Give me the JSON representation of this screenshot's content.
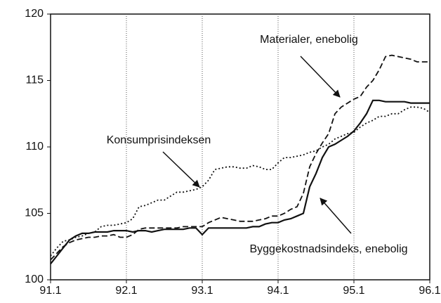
{
  "chart_data": {
    "type": "line",
    "categories": [
      "91.1",
      null,
      null,
      null,
      null,
      null,
      null,
      null,
      null,
      null,
      null,
      null,
      "92.1",
      null,
      null,
      null,
      null,
      null,
      null,
      null,
      null,
      null,
      null,
      null,
      "93.1",
      null,
      null,
      null,
      null,
      null,
      null,
      null,
      null,
      null,
      null,
      null,
      "94.1",
      null,
      null,
      null,
      null,
      null,
      null,
      null,
      null,
      null,
      null,
      null,
      "95.1",
      null,
      null,
      null,
      null,
      null,
      null,
      null,
      null,
      null,
      null,
      null,
      "96.1"
    ],
    "series": [
      {
        "name": "Byggekostnadsindeks, enebolig",
        "color": "#111111",
        "style": "solid",
        "values": [
          101.2,
          101.8,
          102.4,
          103.0,
          103.3,
          103.5,
          103.5,
          103.6,
          103.6,
          103.6,
          103.7,
          103.7,
          103.7,
          103.6,
          103.7,
          103.7,
          103.6,
          103.7,
          103.8,
          103.8,
          103.8,
          103.8,
          103.9,
          103.9,
          103.4,
          103.9,
          103.9,
          103.9,
          103.9,
          103.9,
          103.9,
          103.9,
          104.0,
          104.0,
          104.2,
          104.3,
          104.3,
          104.5,
          104.6,
          104.8,
          105.0,
          107.0,
          108.0,
          109.2,
          110.0,
          110.2,
          110.5,
          110.8,
          111.2,
          111.8,
          112.5,
          113.5,
          113.5,
          113.4,
          113.4,
          113.4,
          113.4,
          113.3,
          113.3,
          113.3,
          113.3
        ]
      },
      {
        "name": "Materialer, enebolig",
        "color": "#111111",
        "style": "dashed",
        "values": [
          101.5,
          102.0,
          102.5,
          102.8,
          103.0,
          103.1,
          103.2,
          103.2,
          103.3,
          103.3,
          103.4,
          103.2,
          103.2,
          103.4,
          103.8,
          103.9,
          103.9,
          103.9,
          103.9,
          103.9,
          103.9,
          104.0,
          104.0,
          104.0,
          104.0,
          104.3,
          104.5,
          104.7,
          104.6,
          104.5,
          104.4,
          104.4,
          104.4,
          104.5,
          104.6,
          104.8,
          104.8,
          105.0,
          105.3,
          105.5,
          106.5,
          108.5,
          109.5,
          110.3,
          111.0,
          112.5,
          113.0,
          113.3,
          113.6,
          113.8,
          114.5,
          115.0,
          115.8,
          116.8,
          116.9,
          116.8,
          116.7,
          116.6,
          116.4,
          116.4,
          116.4
        ]
      },
      {
        "name": "Konsumprisindeksen",
        "color": "#111111",
        "style": "dotted",
        "values": [
          101.8,
          102.4,
          102.9,
          103.0,
          103.2,
          103.3,
          103.5,
          103.6,
          104.0,
          104.1,
          104.1,
          104.2,
          104.3,
          104.6,
          105.5,
          105.6,
          105.8,
          106.0,
          106.0,
          106.3,
          106.6,
          106.6,
          106.7,
          106.8,
          107.0,
          107.5,
          108.3,
          108.4,
          108.5,
          108.5,
          108.4,
          108.4,
          108.6,
          108.5,
          108.3,
          108.3,
          108.8,
          109.2,
          109.2,
          109.3,
          109.4,
          109.6,
          109.7,
          110.0,
          110.2,
          110.6,
          110.8,
          111.0,
          111.1,
          111.5,
          111.8,
          112.0,
          112.3,
          112.3,
          112.5,
          112.5,
          112.8,
          113.0,
          113.0,
          112.9,
          112.6
        ]
      }
    ],
    "ylim": [
      100,
      120
    ],
    "yticks": [
      100,
      105,
      110,
      115,
      120
    ],
    "grid": "x"
  }
}
